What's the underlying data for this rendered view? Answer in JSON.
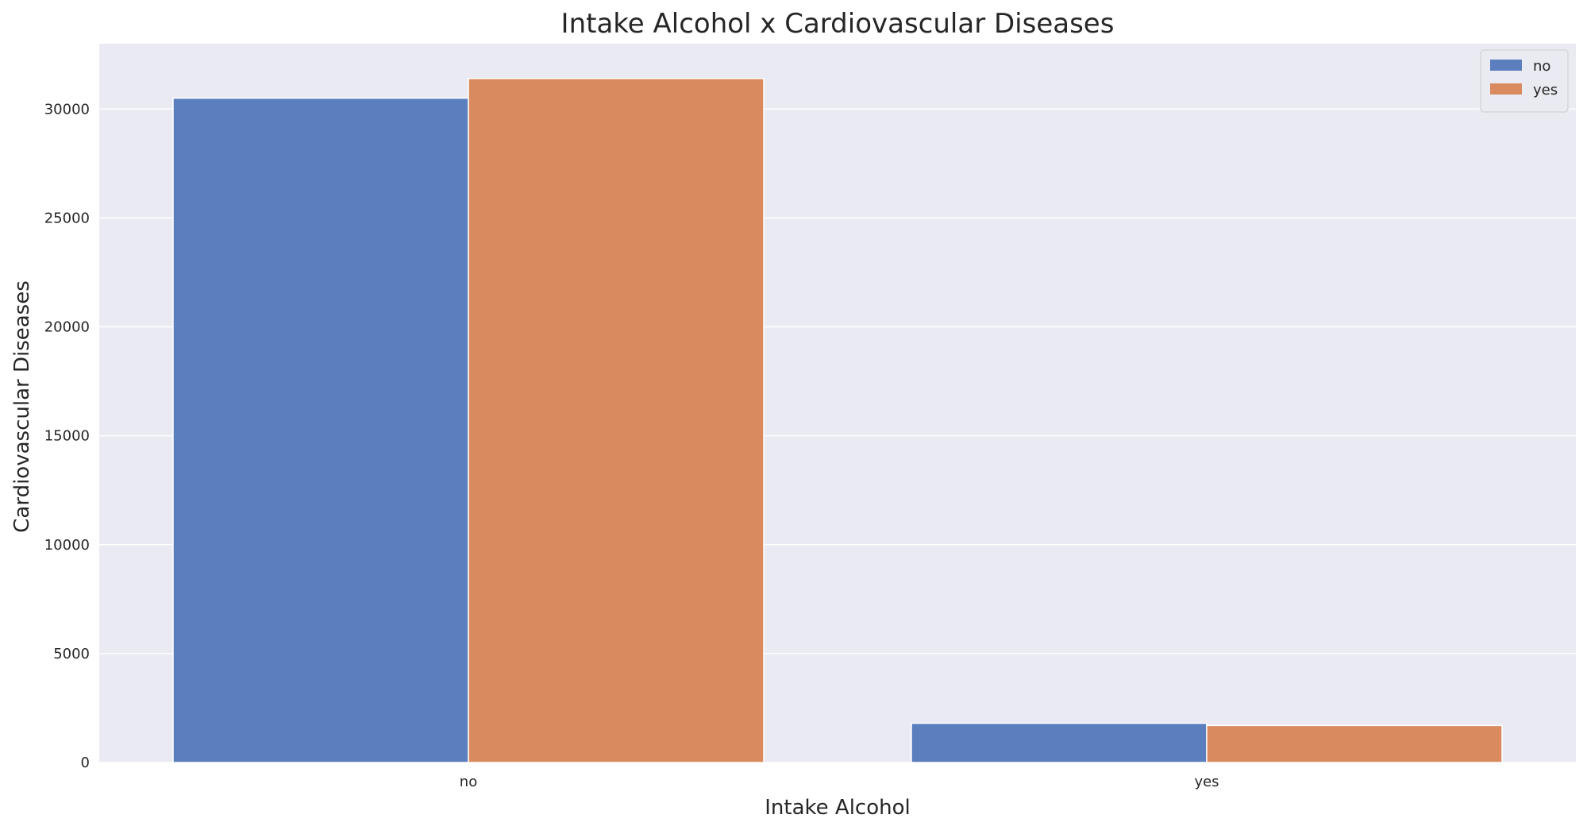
{
  "chart_data": {
    "type": "bar",
    "title": "Intake Alcohol x Cardiovascular Diseases",
    "xlabel": "Intake Alcohol",
    "ylabel": "Cardiovascular Diseases",
    "categories": [
      "no",
      "yes"
    ],
    "series": [
      {
        "name": "no",
        "color": "#5b7ebf",
        "values": [
          30500,
          1800
        ]
      },
      {
        "name": "yes",
        "color": "#d98b5f",
        "values": [
          31400,
          1700
        ]
      }
    ],
    "ylim": [
      0,
      33000
    ],
    "yticks": [
      0,
      5000,
      10000,
      15000,
      20000,
      25000,
      30000
    ],
    "grid": true,
    "legend": "top-right",
    "colors": {
      "plot_background": "#eaeaf2",
      "grid": "#ffffff"
    }
  }
}
